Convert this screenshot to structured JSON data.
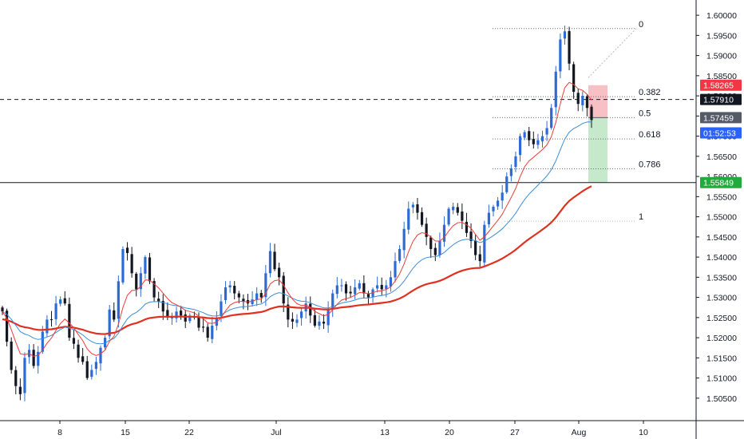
{
  "chart_data": {
    "type": "candlestick",
    "title": "",
    "xlabel": "",
    "ylabel": "",
    "ylim": [
      1.502,
      1.602
    ],
    "grid": false,
    "x_ticks": [
      "8",
      "15",
      "22",
      "Jul",
      "13",
      "20",
      "27",
      "Aug",
      "10"
    ],
    "y_ticks": [
      "1.60000",
      "1.59500",
      "1.59000",
      "1.58500",
      "1.58000",
      "1.57500",
      "1.57000",
      "1.56500",
      "1.56000",
      "1.55500",
      "1.55000",
      "1.54500",
      "1.54000",
      "1.53500",
      "1.53000",
      "1.52500",
      "1.52000",
      "1.51500",
      "1.51000",
      "1.50500"
    ],
    "closes": [
      1.5265,
      1.519,
      1.512,
      1.508,
      1.506,
      1.515,
      1.517,
      1.513,
      1.5165,
      1.5215,
      1.5245,
      1.5245,
      1.5285,
      1.5295,
      1.5285,
      1.52,
      1.5185,
      1.515,
      1.514,
      1.51,
      1.512,
      1.514,
      1.5175,
      1.52,
      1.527,
      1.5245,
      1.534,
      1.542,
      1.541,
      1.536,
      1.532,
      1.536,
      1.54,
      1.534,
      1.53,
      1.529,
      1.5265,
      1.525,
      1.525,
      1.5265,
      1.5255,
      1.524,
      1.5255,
      1.525,
      1.5225,
      1.5225,
      1.52,
      1.523,
      1.525,
      1.529,
      1.5325,
      1.533,
      1.531,
      1.53,
      1.529,
      1.5285,
      1.5295,
      1.531,
      1.53,
      1.536,
      1.5415,
      1.537,
      1.535,
      1.5285,
      1.5245,
      1.524,
      1.5245,
      1.5265,
      1.5285,
      1.5255,
      1.523,
      1.524,
      1.5235,
      1.527,
      1.531,
      1.533,
      1.533,
      1.531,
      1.531,
      1.5325,
      1.5335,
      1.531,
      1.53,
      1.532,
      1.533,
      1.532,
      1.533,
      1.535,
      1.539,
      1.542,
      1.547,
      1.552,
      1.553,
      1.551,
      1.548,
      1.545,
      1.542,
      1.5405,
      1.544,
      1.548,
      1.552,
      1.5525,
      1.551,
      1.549,
      1.546,
      1.544,
      1.5405,
      1.539,
      1.548,
      1.551,
      1.5525,
      1.554,
      1.556,
      1.56,
      1.562,
      1.565,
      1.57,
      1.571,
      1.569,
      1.568,
      1.569,
      1.57,
      1.572,
      1.577,
      1.586,
      1.594,
      1.596,
      1.588,
      1.581,
      1.578,
      1.58,
      1.577,
      1.574
    ],
    "series": [
      {
        "name": "",
        "color": "#ef3b36"
      },
      {
        "name": "",
        "color": "#3a8fd9"
      },
      {
        "name": "",
        "color": "#e03020"
      }
    ],
    "fib_levels": [
      {
        "label": "0",
        "value": 1.5967
      },
      {
        "label": "0.382",
        "value": 1.5798
      },
      {
        "label": "0.5",
        "value": 1.5746
      },
      {
        "label": "0.618",
        "value": 1.5693
      },
      {
        "label": "0.786",
        "value": 1.5619
      },
      {
        "label": "1",
        "value": 1.5489
      }
    ],
    "position": {
      "entry": 1.57459,
      "stop": 1.58265,
      "target": 1.55849
    },
    "horizontal_line": 1.5791,
    "horizontal_level": 1.55849,
    "price_badges": [
      {
        "text": "1.58265",
        "value": 1.58265,
        "bg": "#f23645"
      },
      {
        "text": "1.57910",
        "value": 1.5791,
        "bg": "#131722"
      },
      {
        "text": "1.57459",
        "value": 1.57459,
        "bg": "#555b66"
      },
      {
        "text": "01:52:53",
        "value": 1.5708,
        "bg": "#2962ff"
      },
      {
        "text": "1.55849",
        "value": 1.55849,
        "bg": "#22ab3c"
      }
    ],
    "colors": {
      "candle_up": "#2c6bd6",
      "candle_down": "#131722",
      "stop_zone": "#f7c0c5",
      "target_zone": "#c6e9cb"
    }
  }
}
